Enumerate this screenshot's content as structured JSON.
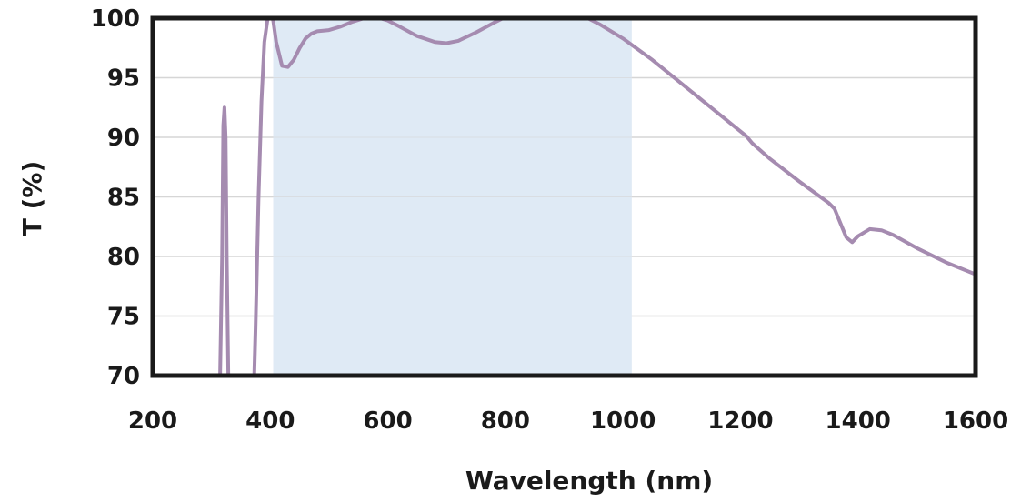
{
  "chart_data": {
    "type": "line",
    "title": "",
    "xlabel": "Wavelength (nm)",
    "ylabel": "T (%)",
    "xlim": [
      200,
      1600
    ],
    "ylim": [
      70,
      100
    ],
    "x_ticks": [
      200,
      400,
      600,
      800,
      1000,
      1200,
      1400,
      1600
    ],
    "y_ticks": [
      70,
      75,
      80,
      85,
      90,
      95,
      100
    ],
    "grid": "horizontal",
    "shaded_region": {
      "x_start": 405,
      "x_end": 1015,
      "color": "#dfeaf5"
    },
    "colors": {
      "line": "#a58bb0",
      "grid": "#d6d6d6",
      "frame": "#1a1a1a"
    },
    "series": [
      {
        "x": [
          313,
          318,
          320,
          322,
          324,
          326,
          330,
          370,
          375,
          380,
          385,
          390,
          395,
          400,
          405,
          410,
          420,
          430,
          440,
          450,
          460,
          470,
          480,
          500,
          520,
          540,
          560,
          580,
          600,
          620,
          650,
          680,
          700,
          720,
          750,
          780,
          800,
          830,
          860,
          880,
          900,
          920,
          940,
          960,
          980,
          1000,
          1050,
          1100,
          1150,
          1200,
          1210,
          1220,
          1250,
          1300,
          1350,
          1360,
          1370,
          1380,
          1390,
          1400,
          1420,
          1440,
          1460,
          1500,
          1550,
          1600
        ],
        "y": [
          65,
          80,
          91,
          92.5,
          90,
          80,
          65,
          65,
          74,
          85,
          93,
          98,
          99.8,
          100.3,
          99.8,
          98,
          96,
          95.9,
          96.5,
          97.5,
          98.3,
          98.7,
          98.9,
          99.0,
          99.3,
          99.7,
          100.0,
          100.1,
          99.8,
          99.3,
          98.5,
          98.0,
          97.9,
          98.1,
          98.8,
          99.6,
          100.1,
          100.5,
          100.6,
          100.6,
          100.5,
          100.3,
          100.0,
          99.5,
          98.9,
          98.3,
          96.5,
          94.5,
          92.5,
          90.5,
          90.1,
          89.5,
          88.2,
          86.3,
          84.5,
          84.0,
          82.8,
          81.6,
          81.2,
          81.7,
          82.3,
          82.2,
          81.8,
          80.7,
          79.5,
          78.5
        ]
      }
    ]
  }
}
